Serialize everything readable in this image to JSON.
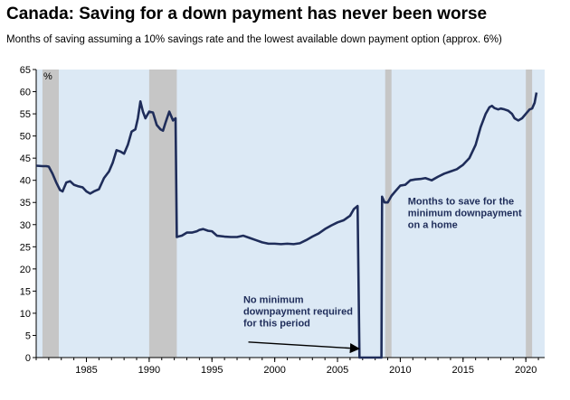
{
  "header": {
    "title": "Canada: Saving for a down payment has never been worse",
    "subtitle": "Months of saving assuming a 10% savings rate and the lowest available down payment option (approx. 6%)"
  },
  "colors": {
    "plot_background": "#dce9f5",
    "recession_band": "#c6c6c6",
    "line": "#1f2d5a",
    "annotation_text": "#1f2d5a"
  },
  "chart_data": {
    "type": "line",
    "title": "Canada: Saving for a down payment has never been worse",
    "subtitle": "Months of saving assuming a 10% savings rate and the lowest available down payment option (approx. 6%)",
    "ylabel": "%",
    "xlabel": "",
    "xlim": [
      1981,
      2021.5
    ],
    "ylim": [
      0,
      65
    ],
    "grid": false,
    "x_ticks": [
      1985,
      1990,
      1995,
      2000,
      2005,
      2010,
      2015,
      2020
    ],
    "y_ticks": [
      0,
      5,
      10,
      15,
      20,
      25,
      30,
      35,
      40,
      45,
      50,
      55,
      60,
      65
    ],
    "recessions": [
      [
        1981.5,
        1982.8
      ],
      [
        1990.0,
        1992.2
      ],
      [
        2008.8,
        2009.3
      ],
      [
        2020.0,
        2020.5
      ]
    ],
    "series": [
      {
        "x": [
          1981.0,
          1981.5,
          1981.8,
          1982.0,
          1982.3,
          1982.6,
          1982.9,
          1983.1,
          1983.4,
          1983.7,
          1984.0,
          1984.3,
          1984.7,
          1985.0,
          1985.3,
          1985.6,
          1986.0,
          1986.4,
          1986.8,
          1987.1,
          1987.4,
          1987.7,
          1988.0,
          1988.3,
          1988.6,
          1988.9,
          1989.1,
          1989.3,
          1989.5,
          1989.7,
          1990.0,
          1990.3,
          1990.6,
          1990.9,
          1991.1,
          1991.3,
          1991.6,
          1991.9,
          1992.1,
          1992.2,
          1992.3,
          1992.6,
          1993.0,
          1993.4,
          1993.8,
          1994.0,
          1994.3,
          1994.7,
          1995.0,
          1995.4,
          1996.0,
          1996.5,
          1997.0,
          1997.5,
          1998.0,
          1998.5,
          1999.0,
          1999.5,
          2000.0,
          2000.5,
          2001.0,
          2001.5,
          2002.0,
          2002.5,
          2003.0,
          2003.5,
          2004.0,
          2004.5,
          2005.0,
          2005.5,
          2006.0,
          2006.3,
          2006.6,
          2006.75,
          2007.0,
          2008.0,
          2008.5,
          2008.55,
          2008.75,
          2009.0,
          2009.3,
          2009.6,
          2010.0,
          2010.4,
          2010.8,
          2011.2,
          2011.6,
          2012.0,
          2012.5,
          2013.0,
          2013.5,
          2014.0,
          2014.5,
          2015.0,
          2015.5,
          2016.0,
          2016.4,
          2016.8,
          2017.1,
          2017.3,
          2017.5,
          2017.8,
          2018.0,
          2018.3,
          2018.6,
          2018.9,
          2019.1,
          2019.4,
          2019.7,
          2020.0,
          2020.3,
          2020.5,
          2020.7,
          2020.85
        ],
        "values": [
          43.3,
          43.2,
          43.2,
          43.1,
          41.5,
          39.5,
          37.8,
          37.5,
          39.5,
          39.8,
          39.0,
          38.7,
          38.4,
          37.5,
          37.0,
          37.5,
          38.0,
          40.5,
          42.0,
          44.0,
          46.8,
          46.5,
          46.0,
          48.0,
          51.0,
          51.5,
          54.0,
          57.8,
          55.5,
          54.0,
          55.5,
          55.3,
          52.5,
          51.5,
          51.2,
          53.0,
          55.5,
          53.5,
          54.0,
          27.2,
          27.3,
          27.5,
          28.2,
          28.2,
          28.5,
          28.8,
          29.0,
          28.6,
          28.5,
          27.5,
          27.3,
          27.2,
          27.2,
          27.5,
          27.0,
          26.5,
          26.0,
          25.7,
          25.7,
          25.6,
          25.7,
          25.6,
          25.8,
          26.5,
          27.3,
          28.0,
          29.0,
          29.8,
          30.5,
          31.0,
          32.0,
          33.5,
          34.2,
          0,
          0,
          0,
          0,
          36.3,
          35.0,
          35.0,
          36.5,
          37.5,
          38.8,
          39.0,
          40.0,
          40.2,
          40.3,
          40.5,
          40.0,
          40.8,
          41.5,
          42.0,
          42.5,
          43.5,
          45.0,
          48.0,
          52.0,
          55.0,
          56.5,
          56.8,
          56.3,
          56.0,
          56.2,
          56.0,
          55.7,
          55.0,
          54.0,
          53.5,
          54.0,
          55.0,
          56.0,
          56.2,
          57.5,
          59.8
        ]
      }
    ],
    "annotations": [
      {
        "lines": [
          "Months to save for the",
          "minimum downpayment",
          "on a home"
        ],
        "x": 2010.6,
        "y": 34.5,
        "align": "left"
      },
      {
        "lines": [
          "No minimum",
          "downpayment required",
          "for this period"
        ],
        "x": 1997.5,
        "y": 12.3,
        "align": "left",
        "arrow_from": [
          1997.9,
          3.5
        ],
        "arrow_to": [
          2006.7,
          2.0
        ]
      }
    ]
  }
}
